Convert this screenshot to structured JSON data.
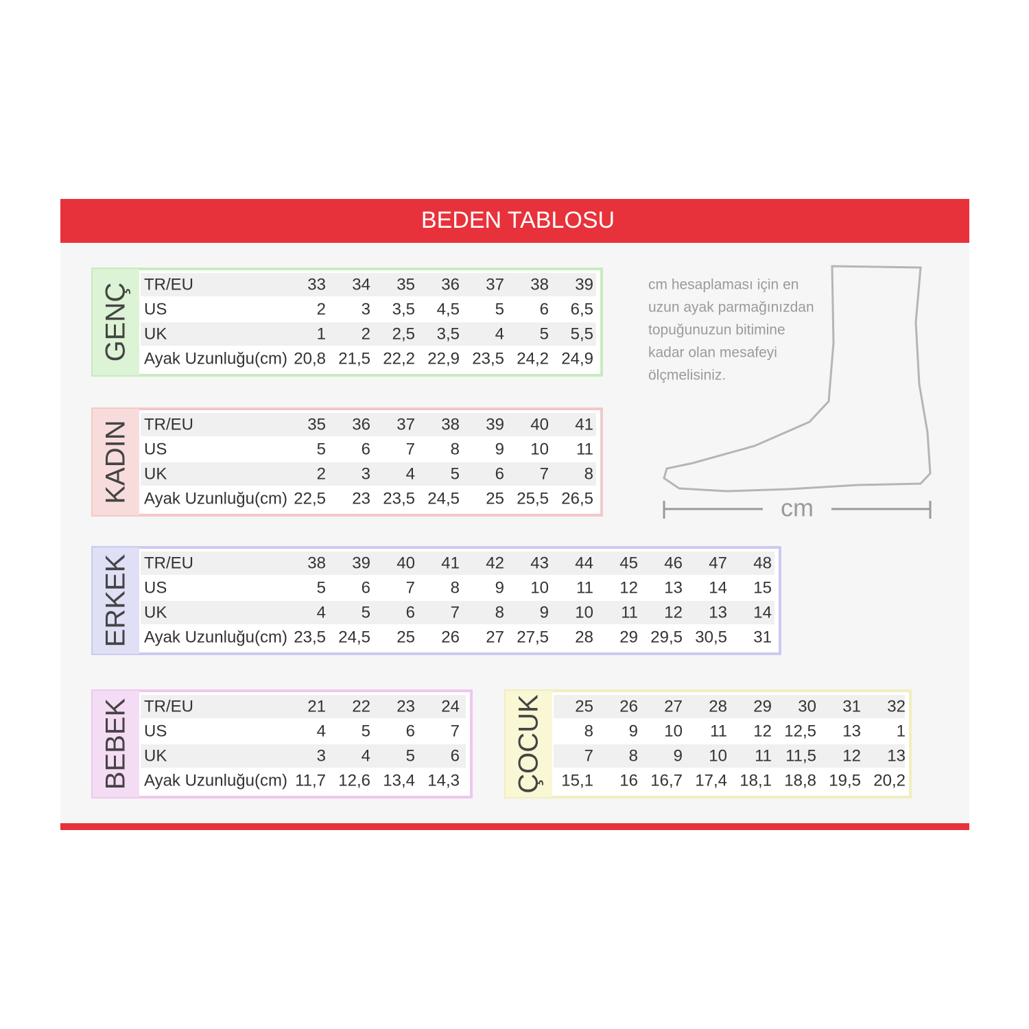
{
  "header": {
    "title": "BEDEN TABLOSU"
  },
  "tables": [
    {
      "label": "GENÇ",
      "rows": [
        {
          "label": "TR/EU",
          "values": [
            "33",
            "34",
            "35",
            "36",
            "37",
            "38",
            "39"
          ]
        },
        {
          "label": "US",
          "values": [
            "2",
            "3",
            "3,5",
            "4,5",
            "5",
            "6",
            "6,5"
          ]
        },
        {
          "label": "UK",
          "values": [
            "1",
            "2",
            "2,5",
            "3,5",
            "4",
            "5",
            "5,5"
          ]
        },
        {
          "label": "Ayak Uzunluğu(cm)",
          "values": [
            "20,8",
            "21,5",
            "22,2",
            "22,9",
            "23,5",
            "24,2",
            "24,9"
          ]
        }
      ]
    },
    {
      "label": "KADIN",
      "rows": [
        {
          "label": "TR/EU",
          "values": [
            "35",
            "36",
            "37",
            "38",
            "39",
            "40",
            "41"
          ]
        },
        {
          "label": "US",
          "values": [
            "5",
            "6",
            "7",
            "8",
            "9",
            "10",
            "11"
          ]
        },
        {
          "label": "UK",
          "values": [
            "2",
            "3",
            "4",
            "5",
            "6",
            "7",
            "8"
          ]
        },
        {
          "label": "Ayak Uzunluğu(cm)",
          "values": [
            "22,5",
            "23",
            "23,5",
            "24,5",
            "25",
            "25,5",
            "26,5"
          ]
        }
      ]
    },
    {
      "label": "ERKEK",
      "rows": [
        {
          "label": "TR/EU",
          "values": [
            "38",
            "39",
            "40",
            "41",
            "42",
            "43",
            "44",
            "45",
            "46",
            "47",
            "48"
          ]
        },
        {
          "label": "US",
          "values": [
            "5",
            "6",
            "7",
            "8",
            "9",
            "10",
            "11",
            "12",
            "13",
            "14",
            "15"
          ]
        },
        {
          "label": "UK",
          "values": [
            "4",
            "5",
            "6",
            "7",
            "8",
            "9",
            "10",
            "11",
            "12",
            "13",
            "14"
          ]
        },
        {
          "label": "Ayak Uzunluğu(cm)",
          "values": [
            "23,5",
            "24,5",
            "25",
            "26",
            "27",
            "27,5",
            "28",
            "29",
            "29,5",
            "30,5",
            "31"
          ]
        }
      ]
    },
    {
      "label": "BEBEK",
      "rows": [
        {
          "label": "TR/EU",
          "values": [
            "21",
            "22",
            "23",
            "24"
          ]
        },
        {
          "label": "US",
          "values": [
            "4",
            "5",
            "6",
            "7"
          ]
        },
        {
          "label": "UK",
          "values": [
            "3",
            "4",
            "5",
            "6"
          ]
        },
        {
          "label": "Ayak Uzunluğu(cm)",
          "values": [
            "11,7",
            "12,6",
            "13,4",
            "14,3"
          ]
        }
      ]
    },
    {
      "label": "ÇOCUK",
      "rows": [
        {
          "values": [
            "25",
            "26",
            "27",
            "28",
            "29",
            "30",
            "31",
            "32"
          ]
        },
        {
          "values": [
            "8",
            "9",
            "10",
            "11",
            "12",
            "12,5",
            "13",
            "1"
          ]
        },
        {
          "values": [
            "7",
            "8",
            "9",
            "10",
            "11",
            "11,5",
            "12",
            "13"
          ]
        },
        {
          "values": [
            "15,1",
            "16",
            "16,7",
            "17,4",
            "18,1",
            "18,8",
            "19,5",
            "20,2"
          ]
        }
      ]
    }
  ],
  "note": {
    "lines": [
      "cm hesaplaması için en",
      "uzun ayak parmağınızdan",
      "topuğunuzun bitimine",
      "kadar olan mesafeyi",
      "ölçmelisiniz."
    ]
  },
  "diagram": {
    "unit": "cm"
  }
}
